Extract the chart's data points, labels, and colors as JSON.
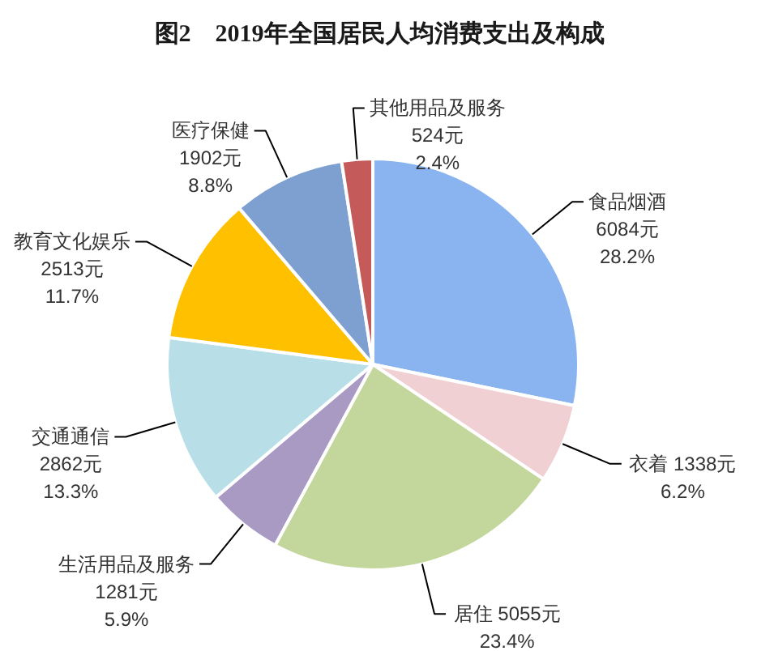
{
  "chart_data": {
    "type": "pie",
    "title": "图2　2019年全国居民人均消费支出及构成",
    "categories": [
      "食品烟酒",
      "衣着",
      "居住",
      "生活用品及服务",
      "交通通信",
      "教育文化娱乐",
      "医疗保健",
      "其他用品及服务"
    ],
    "values": [
      6084,
      1338,
      5055,
      1281,
      2862,
      2513,
      1902,
      524
    ],
    "colors": [
      "#8ab4f0",
      "#f0d0d2",
      "#c3d69b",
      "#a99ac4",
      "#b8dfe8",
      "#ffc000",
      "#7ea0d0",
      "#c55a5a"
    ],
    "value_labels": [
      "6084元\n28.2%",
      "1338元\n6.2%",
      "5055元\n23.4%",
      "1281元\n5.9%",
      "2862元\n13.3%",
      "2513元\n11.7%",
      "1902元\n8.8%",
      "524元\n2.4%"
    ]
  }
}
